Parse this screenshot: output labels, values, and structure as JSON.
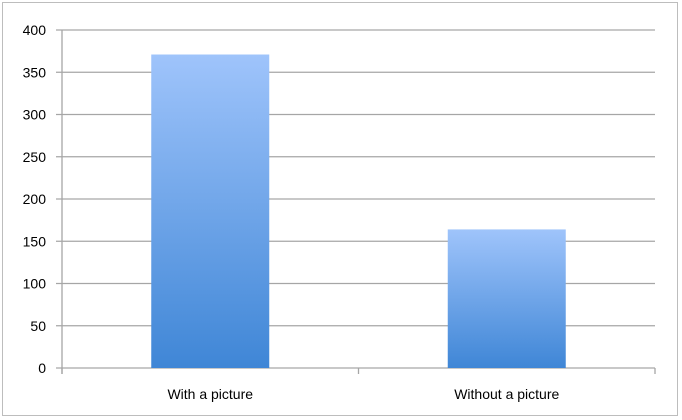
{
  "chart_data": {
    "type": "bar",
    "title": "",
    "xlabel": "",
    "ylabel": "",
    "categories": [
      "With a picture",
      "Without a picture"
    ],
    "values": [
      371,
      164
    ],
    "ylim": [
      0,
      400
    ],
    "yticks": [
      0,
      50,
      100,
      150,
      200,
      250,
      300,
      350,
      400
    ],
    "grid": true,
    "legend": "none",
    "colors": {
      "bar_top": "#9fc4fb",
      "bar_bottom": "#3f86d6",
      "grid": "#a6a6a6"
    }
  }
}
